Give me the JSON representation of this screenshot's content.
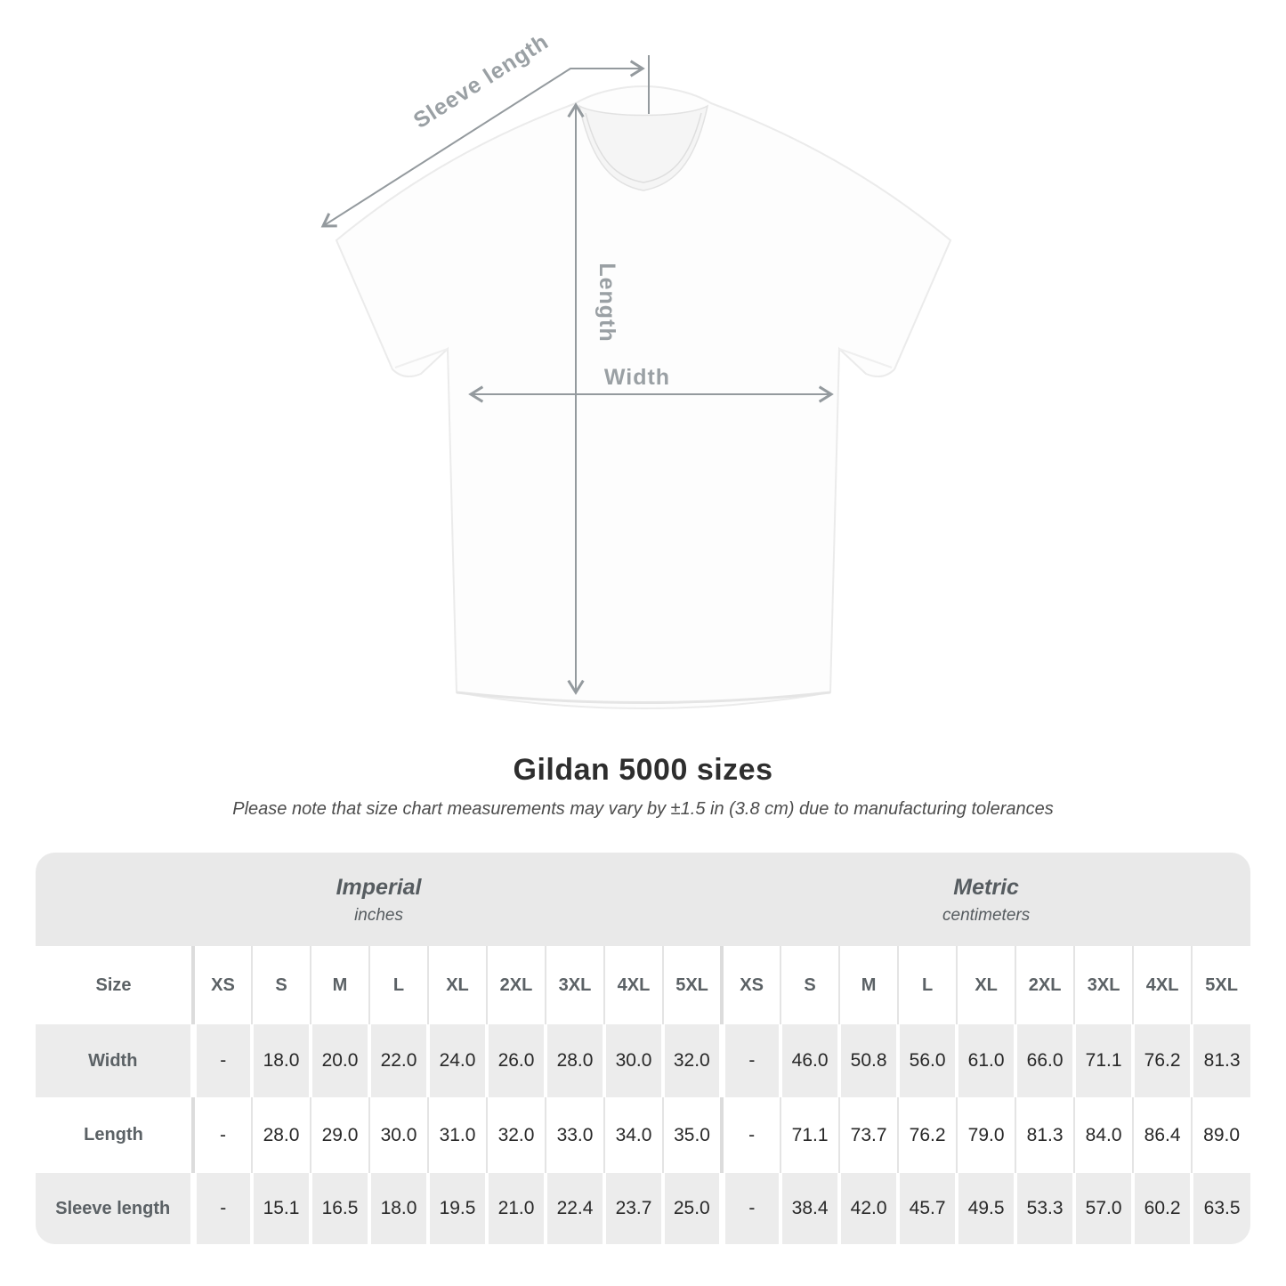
{
  "title": "Gildan 5000 sizes",
  "subtitle": "Please note that size chart measurements may vary by ±1.5 in (3.8 cm) due to manufacturing tolerances",
  "diagram": {
    "labels": {
      "sleeve_length": "Sleeve length",
      "length": "Length",
      "width": "Width"
    }
  },
  "table": {
    "size_header": "Size",
    "groups": [
      {
        "label": "Imperial",
        "sublabel": "inches"
      },
      {
        "label": "Metric",
        "sublabel": "centimeters"
      }
    ],
    "sizes": [
      "XS",
      "S",
      "M",
      "L",
      "XL",
      "2XL",
      "3XL",
      "4XL",
      "5XL"
    ],
    "rows": [
      {
        "label": "Width",
        "imperial": [
          "-",
          "18.0",
          "20.0",
          "22.0",
          "24.0",
          "26.0",
          "28.0",
          "30.0",
          "32.0"
        ],
        "metric": [
          "-",
          "46.0",
          "50.8",
          "56.0",
          "61.0",
          "66.0",
          "71.1",
          "76.2",
          "81.3"
        ]
      },
      {
        "label": "Length",
        "imperial": [
          "-",
          "28.0",
          "29.0",
          "30.0",
          "31.0",
          "32.0",
          "33.0",
          "34.0",
          "35.0"
        ],
        "metric": [
          "-",
          "71.1",
          "73.7",
          "76.2",
          "79.0",
          "81.3",
          "84.0",
          "86.4",
          "89.0"
        ]
      },
      {
        "label": "Sleeve length",
        "imperial": [
          "-",
          "15.1",
          "16.5",
          "18.0",
          "19.5",
          "21.0",
          "22.4",
          "23.7",
          "25.0"
        ],
        "metric": [
          "-",
          "38.4",
          "42.0",
          "45.7",
          "49.5",
          "53.3",
          "57.0",
          "60.2",
          "63.5"
        ]
      }
    ]
  },
  "colors": {
    "band_gray": "#e9e9e9",
    "row_gray": "#ececec",
    "divider": "#e4e4e4",
    "arrow_gray": "#9aa0a4",
    "label_gray": "#5b6165",
    "number_dark": "#282828",
    "title_dark": "#2e2e2e"
  }
}
